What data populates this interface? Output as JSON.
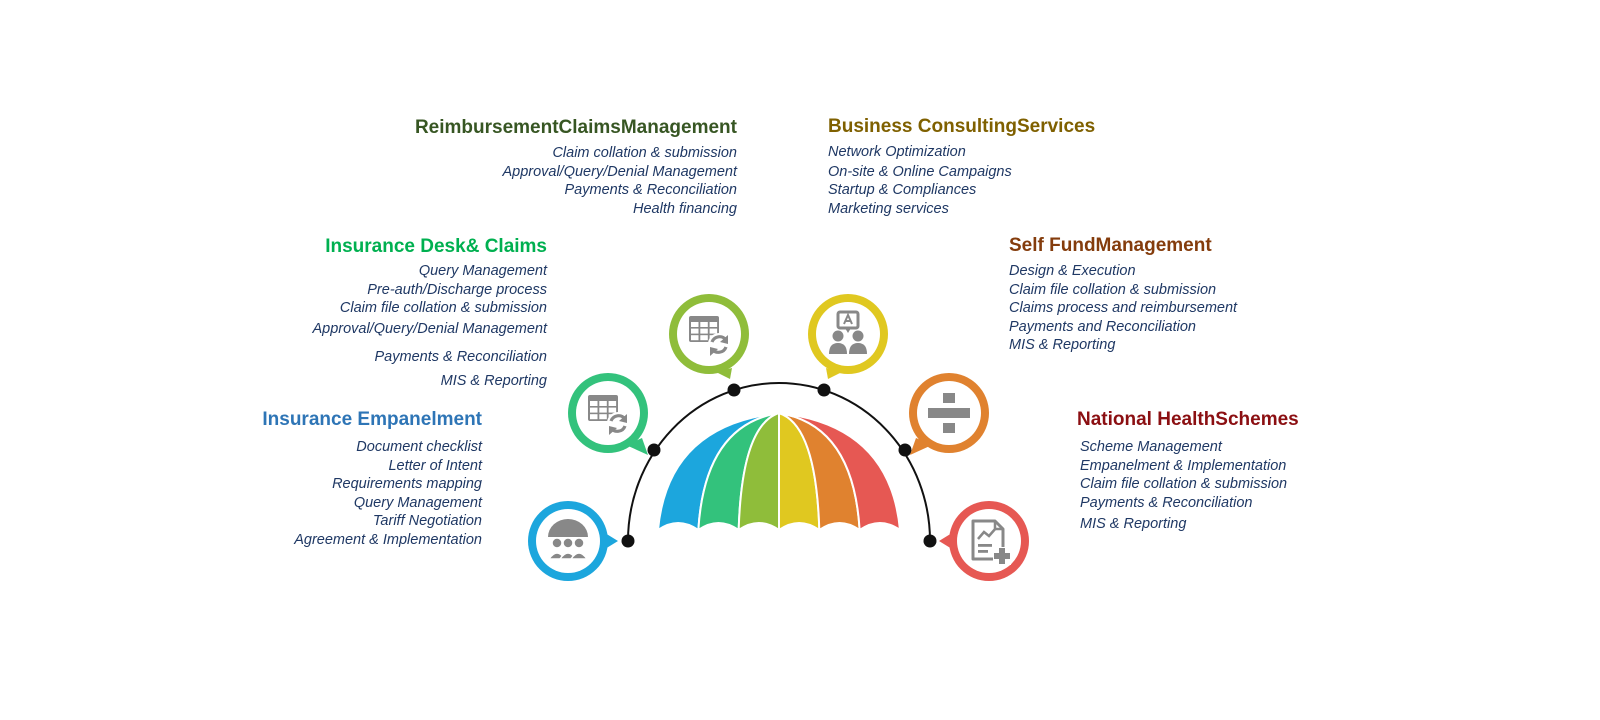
{
  "colors": {
    "blue": "#1ca6dd",
    "teal": "#33c27c",
    "green": "#8fbd3a",
    "yellow": "#e0c820",
    "orange": "#e0822f",
    "red": "#e65853",
    "icon_gray": "#888888",
    "connector": "#111111"
  },
  "sections": [
    {
      "key": "insurance_empanelment",
      "title": "Insurance Empanelment",
      "title_color": "#2e75b6",
      "items": [
        "Document checklist",
        "Letter of Intent",
        "Requirements mapping",
        "Query Management",
        "Tariff Negotiation",
        "Agreement & Implementation"
      ],
      "icon": "umbrella-people-icon"
    },
    {
      "key": "insurance_desk_claims",
      "title": "Insurance Desk& Claims",
      "title_color": "#00b050",
      "items": [
        "Query Management",
        "Pre-auth/Discharge process",
        "Claim file collation & submission",
        "Approval/Query/Denial Management",
        "Payments & Reconciliation",
        "MIS & Reporting"
      ],
      "icon": "table-refresh-icon"
    },
    {
      "key": "reimbursement_claims",
      "title": "ReimbursementClaimsManagement",
      "title_color": "#375623",
      "items": [
        "Claim collation & submission",
        "Approval/Query/Denial Management",
        "Payments & Reconciliation",
        "Health financing"
      ],
      "icon": "spreadsheet-sync-icon"
    },
    {
      "key": "business_consulting",
      "title": "Business ConsultingServices",
      "title_color": "#7f6000",
      "items": [
        "Network Optimization",
        "On-site & Online Campaigns",
        "Startup & Compliances",
        "Marketing services"
      ],
      "icon": "consulting-people-icon"
    },
    {
      "key": "self_fund",
      "title": "Self FundManagement",
      "title_color": "#843c0c",
      "items": [
        "Design & Execution",
        "Claim file collation & submission",
        "Claims process and reimbursement",
        "Payments and Reconciliation",
        "MIS & Reporting"
      ],
      "icon": "divide-icon"
    },
    {
      "key": "national_health",
      "title": "National HealthSchemes",
      "title_color": "#8b0f12",
      "items": [
        "Scheme Management",
        "Empanelment & Implementation",
        "Claim file collation & submission",
        "Payments & Reconciliation",
        "MIS & Reporting"
      ],
      "icon": "document-add-icon"
    }
  ]
}
